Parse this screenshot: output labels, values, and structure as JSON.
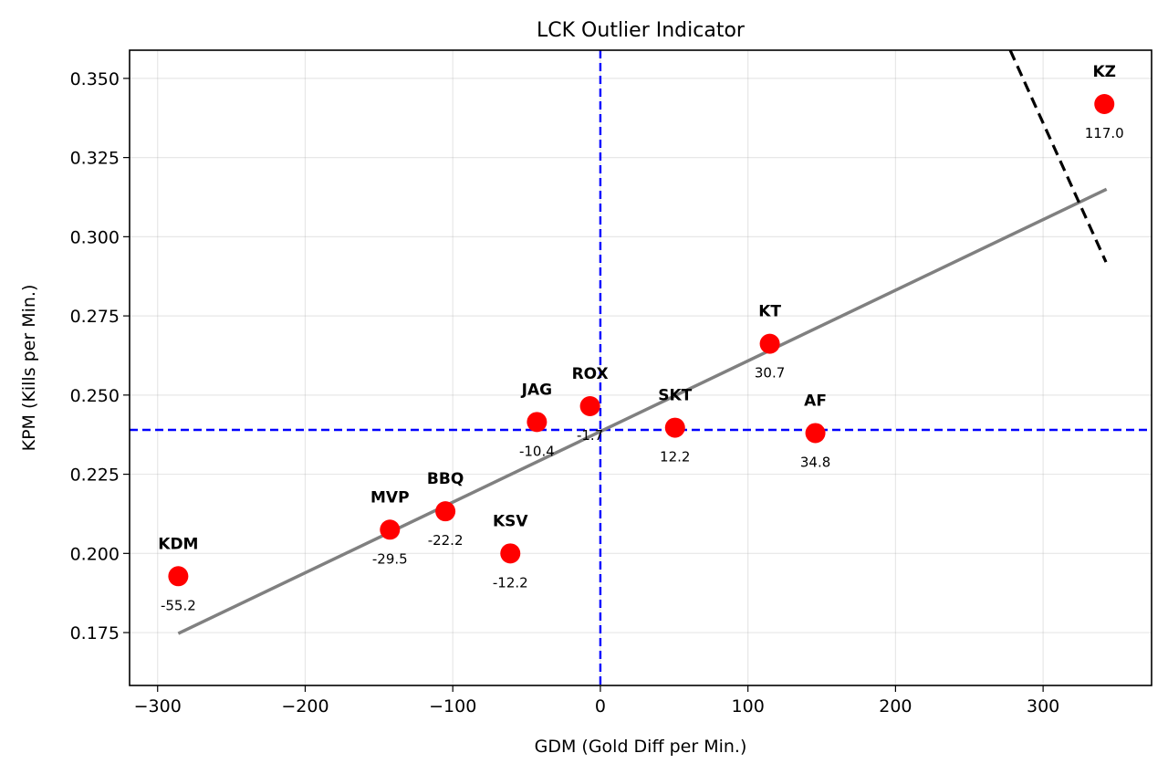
{
  "chart_data": {
    "type": "scatter",
    "title": "LCK Outlier Indicator",
    "xlabel": "GDM (Gold Diff per Min.)",
    "ylabel": "KPM (Kills per Min.)",
    "xlim": [
      -319,
      373.5
    ],
    "ylim": [
      0.1583,
      0.3589
    ],
    "grid": true,
    "x_ticks": [
      -300,
      -200,
      -100,
      0,
      100,
      200,
      300
    ],
    "x_tick_labels": [
      "−300",
      "−200",
      "−100",
      "0",
      "100",
      "200",
      "300"
    ],
    "y_ticks": [
      0.175,
      0.2,
      0.225,
      0.25,
      0.275,
      0.3,
      0.325,
      0.35
    ],
    "y_tick_labels": [
      "0.175",
      "0.200",
      "0.225",
      "0.250",
      "0.275",
      "0.300",
      "0.325",
      "0.350"
    ],
    "point_color": "#ff0000",
    "points": [
      {
        "team": "KDM",
        "x": -286,
        "y": 0.1928,
        "value_label": "-55.2"
      },
      {
        "team": "MVP",
        "x": -142.6,
        "y": 0.2075,
        "value_label": "-29.5"
      },
      {
        "team": "BBQ",
        "x": -105,
        "y": 0.2133,
        "value_label": "-22.2"
      },
      {
        "team": "KSV",
        "x": -61,
        "y": 0.2,
        "value_label": "-12.2"
      },
      {
        "team": "JAG",
        "x": -43,
        "y": 0.2415,
        "value_label": "-10.4"
      },
      {
        "team": "ROX",
        "x": -7,
        "y": 0.2465,
        "value_label": "-1.7"
      },
      {
        "team": "SKT",
        "x": 50.6,
        "y": 0.2397,
        "value_label": "12.2"
      },
      {
        "team": "KT",
        "x": 114.8,
        "y": 0.2662,
        "value_label": "30.7"
      },
      {
        "team": "AF",
        "x": 145.7,
        "y": 0.238,
        "value_label": "34.8"
      },
      {
        "team": "KZ",
        "x": 341.5,
        "y": 0.3419,
        "value_label": "117.0"
      }
    ],
    "regression_line": {
      "color": "#808080",
      "x": [
        -286,
        343
      ],
      "y": [
        0.1747,
        0.315
      ]
    },
    "mean_lines": {
      "color": "#0000ff",
      "x_mean": 0,
      "y_mean": 0.239
    },
    "outlier_boundary": {
      "color": "#000000",
      "style": "dashed",
      "x": [
        277.7,
        342.6
      ],
      "y": [
        0.3589,
        0.292
      ]
    }
  }
}
